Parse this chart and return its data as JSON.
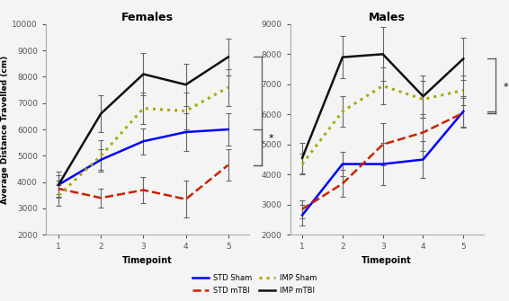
{
  "timepoints": [
    1,
    2,
    3,
    4,
    5
  ],
  "females": {
    "STD_Sham": {
      "y": [
        3900,
        4850,
        5550,
        5900,
        6000
      ],
      "yerr": [
        350,
        400,
        500,
        700,
        600
      ]
    },
    "STD_mTBI": {
      "y": [
        3750,
        3400,
        3700,
        3350,
        4650
      ],
      "yerr": [
        300,
        350,
        500,
        700,
        600
      ]
    },
    "IMP_Sham": {
      "y": [
        3500,
        5000,
        6800,
        6700,
        7600
      ],
      "yerr": [
        400,
        600,
        600,
        700,
        700
      ]
    },
    "IMP_mTBI": {
      "y": [
        3900,
        6600,
        8100,
        7700,
        8750
      ],
      "yerr": [
        500,
        700,
        800,
        800,
        700
      ]
    }
  },
  "males": {
    "STD_Sham": {
      "y": [
        2650,
        4350,
        4350,
        4500,
        6100
      ],
      "yerr": [
        350,
        400,
        700,
        600,
        500
      ]
    },
    "STD_mTBI": {
      "y": [
        2850,
        3700,
        5000,
        5400,
        6050
      ],
      "yerr": [
        300,
        450,
        700,
        600,
        500
      ]
    },
    "IMP_Sham": {
      "y": [
        4350,
        6100,
        6950,
        6500,
        6800
      ],
      "yerr": [
        350,
        500,
        600,
        600,
        500
      ]
    },
    "IMP_mTBI": {
      "y": [
        4550,
        7900,
        8000,
        6600,
        7850
      ],
      "yerr": [
        500,
        700,
        900,
        700,
        700
      ]
    }
  },
  "colors": {
    "STD_Sham": "#0000ff",
    "STD_mTBI": "#cc2200",
    "IMP_Sham": "#aaaa00",
    "IMP_mTBI": "#111111"
  },
  "females_ylim": [
    2000,
    10000
  ],
  "males_ylim": [
    2000,
    9000
  ],
  "females_yticks": [
    2000,
    3000,
    4000,
    5000,
    6000,
    7000,
    8000,
    9000,
    10000
  ],
  "males_yticks": [
    2000,
    3000,
    4000,
    5000,
    6000,
    7000,
    8000,
    9000
  ],
  "xlabel": "Timepoint",
  "ylabel": "Average Distance Travelled (cm)",
  "title_females": "Females",
  "title_males": "Males",
  "background_color": "#f4f4f4"
}
